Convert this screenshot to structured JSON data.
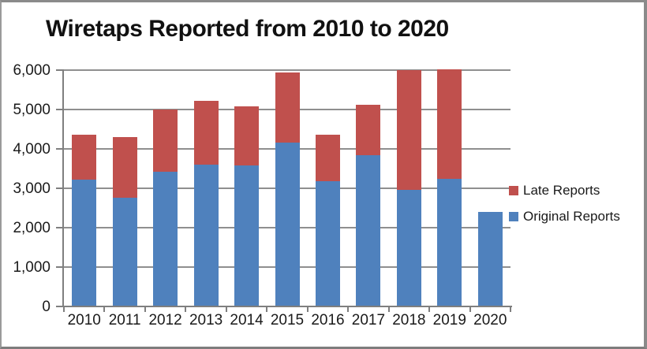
{
  "title": "Wiretaps Reported from 2010 to 2020",
  "chart_data": {
    "type": "bar",
    "stacked": true,
    "title": "Wiretaps Reported from 2010 to 2020",
    "categories": [
      "2010",
      "2011",
      "2012",
      "2013",
      "2014",
      "2015",
      "2016",
      "2017",
      "2018",
      "2019",
      "2020"
    ],
    "series": [
      {
        "name": "Original Reports",
        "color": "#4F81BD",
        "values": [
          3194,
          2732,
          3395,
          3576,
          3554,
          4148,
          3168,
          3813,
          2937,
          3225,
          2377
        ]
      },
      {
        "name": "Late Reports",
        "color": "#C0504D",
        "values": [
          1150,
          1550,
          1590,
          1630,
          1500,
          1780,
          1180,
          1290,
          3050,
          2770,
          0
        ]
      }
    ],
    "xlabel": "",
    "ylabel": "",
    "ylim": [
      0,
      6000
    ],
    "ytick_interval": 1000,
    "ytick_labels": [
      "0",
      "1,000",
      "2,000",
      "3,000",
      "4,000",
      "5,000",
      "6,000"
    ],
    "grid": true,
    "legend_position": "right"
  },
  "legend": {
    "items": [
      {
        "label": "Late Reports",
        "color": "#C0504D"
      },
      {
        "label": "Original Reports",
        "color": "#4F81BD"
      }
    ]
  },
  "colors": {
    "original_reports": "#4F81BD",
    "late_reports": "#C0504D",
    "gridline": "#8f8f8f",
    "axis": "#7f7f7f",
    "text": "#1a1a1a",
    "background": "#ffffff"
  }
}
